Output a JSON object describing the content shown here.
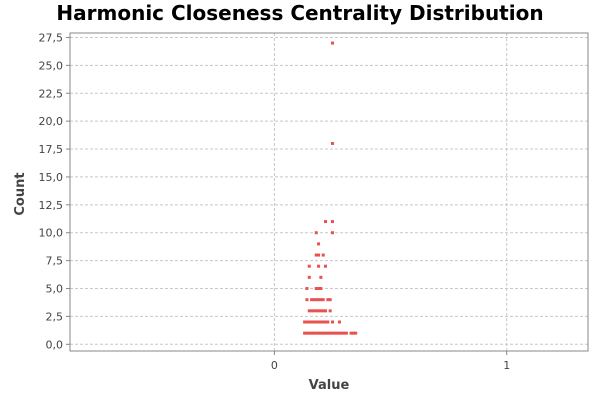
{
  "chart_data": {
    "type": "scatter",
    "title": "Harmonic Closeness Centrality Distribution",
    "xlabel": "Value",
    "ylabel": "Count",
    "xlim": [
      -0.88,
      1.35
    ],
    "ylim": [
      -0.6,
      27.9
    ],
    "x_ticks": [
      0,
      1
    ],
    "x_tick_labels": [
      "0",
      "1"
    ],
    "y_ticks": [
      0,
      2.5,
      5,
      7.5,
      10,
      12.5,
      15,
      17.5,
      20,
      22.5,
      25,
      27.5
    ],
    "y_tick_labels": [
      "0,0",
      "2,5",
      "5,0",
      "7,5",
      "10,0",
      "12,5",
      "15,0",
      "17,5",
      "20,0",
      "22,5",
      "25,0",
      "27,5"
    ],
    "grid": true,
    "legend": "none",
    "point_color": "#e8524f",
    "series": [
      {
        "points": [
          [
            0.25,
            27
          ],
          [
            0.25,
            18
          ],
          [
            0.22,
            11
          ],
          [
            0.25,
            11
          ],
          [
            0.18,
            10
          ],
          [
            0.25,
            10
          ],
          [
            0.19,
            9
          ],
          [
            0.18,
            8
          ],
          [
            0.19,
            8
          ],
          [
            0.21,
            8
          ],
          [
            0.15,
            7
          ],
          [
            0.19,
            7
          ],
          [
            0.22,
            7
          ],
          [
            0.15,
            6
          ],
          [
            0.2,
            6
          ],
          [
            0.14,
            5
          ],
          [
            0.18,
            5
          ],
          [
            0.19,
            5
          ],
          [
            0.2,
            5
          ],
          [
            0.14,
            4
          ],
          [
            0.16,
            4
          ],
          [
            0.17,
            4
          ],
          [
            0.18,
            4
          ],
          [
            0.19,
            4
          ],
          [
            0.2,
            4
          ],
          [
            0.21,
            4
          ],
          [
            0.23,
            4
          ],
          [
            0.24,
            4
          ],
          [
            0.15,
            3
          ],
          [
            0.16,
            3
          ],
          [
            0.17,
            3
          ],
          [
            0.18,
            3
          ],
          [
            0.19,
            3
          ],
          [
            0.2,
            3
          ],
          [
            0.21,
            3
          ],
          [
            0.22,
            3
          ],
          [
            0.24,
            3
          ],
          [
            0.13,
            2
          ],
          [
            0.14,
            2
          ],
          [
            0.15,
            2
          ],
          [
            0.16,
            2
          ],
          [
            0.17,
            2
          ],
          [
            0.18,
            2
          ],
          [
            0.19,
            2
          ],
          [
            0.2,
            2
          ],
          [
            0.21,
            2
          ],
          [
            0.22,
            2
          ],
          [
            0.23,
            2
          ],
          [
            0.25,
            2
          ],
          [
            0.28,
            2
          ],
          [
            0.13,
            1
          ],
          [
            0.14,
            1
          ],
          [
            0.15,
            1
          ],
          [
            0.16,
            1
          ],
          [
            0.17,
            1
          ],
          [
            0.18,
            1
          ],
          [
            0.19,
            1
          ],
          [
            0.2,
            1
          ],
          [
            0.21,
            1
          ],
          [
            0.22,
            1
          ],
          [
            0.23,
            1
          ],
          [
            0.24,
            1
          ],
          [
            0.25,
            1
          ],
          [
            0.26,
            1
          ],
          [
            0.27,
            1
          ],
          [
            0.28,
            1
          ],
          [
            0.29,
            1
          ],
          [
            0.3,
            1
          ],
          [
            0.31,
            1
          ],
          [
            0.33,
            1
          ],
          [
            0.34,
            1
          ],
          [
            0.35,
            1
          ]
        ]
      }
    ]
  }
}
